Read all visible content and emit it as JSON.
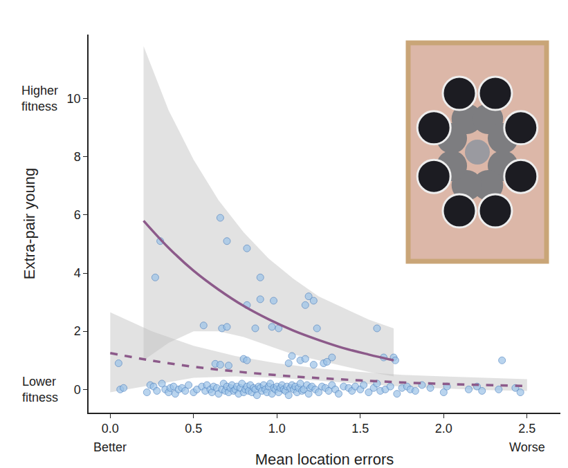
{
  "chart_data": {
    "type": "scatter",
    "xlabel": "Mean location errors",
    "ylabel": "Extra-pair young",
    "y_end_labels": {
      "low": "Lower fitness",
      "high": "Higher fitness"
    },
    "x_end_labels": {
      "low": "Better",
      "high": "Worse"
    },
    "xlim": [
      -0.13,
      2.7
    ],
    "ylim": [
      -0.8,
      12.2
    ],
    "xticks": [
      {
        "value": 0,
        "label": "0.0"
      },
      0.5,
      {
        "value": 1,
        "label": "1.0"
      },
      1.5,
      {
        "value": 2,
        "label": "2.0"
      },
      2.5
    ],
    "yticks": [
      0,
      2,
      4,
      6,
      8,
      10
    ],
    "grid": false,
    "series": [
      {
        "type": "scatter",
        "marker": "circle",
        "color": "#9cc3e8",
        "x": [
          0.3,
          0.27,
          0.66,
          0.7,
          0.82,
          0.9,
          0.9,
          0.98,
          0.82,
          0.56,
          0.67,
          0.7,
          0.87,
          0.97,
          1.01,
          1.19,
          1.22,
          1.17,
          1.24,
          1.6,
          0.63,
          0.66,
          0.71,
          0.8,
          0.82,
          1.07,
          1.09,
          1.14,
          1.17,
          1.22,
          1.28,
          1.3,
          1.33,
          1.64,
          1.7,
          1.71,
          2.35,
          0.05,
          0.06,
          0.08,
          0.22,
          0.24,
          0.26,
          0.28,
          0.31,
          0.33,
          0.35,
          0.36,
          0.38,
          0.39,
          0.41,
          0.43,
          0.45,
          0.47,
          0.5,
          0.52,
          0.55,
          0.57,
          0.58,
          0.6,
          0.61,
          0.62,
          0.64,
          0.65,
          0.67,
          0.68,
          0.69,
          0.7,
          0.71,
          0.72,
          0.73,
          0.74,
          0.75,
          0.76,
          0.77,
          0.78,
          0.79,
          0.8,
          0.81,
          0.82,
          0.83,
          0.84,
          0.85,
          0.86,
          0.87,
          0.88,
          0.89,
          0.9,
          0.91,
          0.92,
          0.93,
          0.94,
          0.95,
          0.96,
          0.97,
          0.98,
          0.99,
          1.0,
          1.01,
          1.02,
          1.03,
          1.04,
          1.05,
          1.06,
          1.07,
          1.08,
          1.09,
          1.1,
          1.11,
          1.12,
          1.13,
          1.14,
          1.15,
          1.16,
          1.18,
          1.19,
          1.2,
          1.21,
          1.23,
          1.25,
          1.27,
          1.29,
          1.31,
          1.33,
          1.35,
          1.37,
          1.4,
          1.43,
          1.45,
          1.47,
          1.5,
          1.52,
          1.55,
          1.58,
          1.6,
          1.62,
          1.65,
          1.68,
          1.72,
          1.75,
          1.78,
          1.8,
          1.83,
          1.87,
          1.92,
          2.0,
          2.02,
          2.15,
          2.2,
          2.23,
          2.33,
          2.43,
          2.46
        ],
        "values": [
          5.1,
          3.85,
          5.9,
          5.1,
          4.85,
          3.85,
          3.1,
          3.05,
          2.9,
          2.2,
          2.1,
          2.15,
          2.1,
          2.15,
          2.1,
          3.2,
          3.05,
          2.9,
          2.1,
          2.1,
          0.88,
          0.85,
          0.82,
          1.05,
          1.0,
          0.9,
          1.15,
          1.0,
          1.05,
          0.85,
          0.9,
          0.95,
          1.1,
          1.1,
          1.1,
          1.0,
          1.0,
          0.9,
          0.0,
          0.05,
          -0.1,
          0.15,
          0.1,
          -0.05,
          0.2,
          0.0,
          -0.1,
          0.05,
          0.1,
          -0.15,
          0.0,
          0.05,
          -0.05,
          0.15,
          -0.1,
          0.0,
          0.1,
          -0.05,
          0.15,
          0.0,
          -0.1,
          0.1,
          0.05,
          -0.15,
          0.0,
          0.2,
          -0.05,
          0.1,
          -0.1,
          0.05,
          0.15,
          -0.05,
          0.0,
          0.1,
          -0.15,
          0.05,
          0.2,
          -0.1,
          0.0,
          0.1,
          -0.05,
          0.15,
          -0.1,
          0.05,
          0.0,
          -0.2,
          0.1,
          0.05,
          -0.05,
          0.15,
          0.0,
          -0.1,
          0.1,
          0.2,
          -0.15,
          0.05,
          0.0,
          0.1,
          -0.1,
          0.05,
          0.15,
          0.0,
          -0.05,
          0.1,
          -0.2,
          0.05,
          0.15,
          0.0,
          0.1,
          -0.1,
          0.05,
          0.2,
          -0.05,
          0.0,
          0.15,
          -0.15,
          0.05,
          0.1,
          0.0,
          -0.1,
          0.1,
          0.05,
          -0.05,
          0.15,
          0.0,
          -0.15,
          0.1,
          0.05,
          -0.05,
          0.1,
          0.0,
          0.15,
          -0.1,
          0.05,
          0.2,
          -0.05,
          0.0,
          0.1,
          -0.15,
          0.05,
          0.1,
          0.0,
          -0.05,
          0.15,
          0.05,
          -0.1,
          0.1,
          0.0,
          0.1,
          -0.05,
          0.0,
          0.05,
          -0.1
        ]
      },
      {
        "type": "line",
        "line_style": "solid",
        "color": "#8c5a8a",
        "x": [
          0.2,
          0.35,
          0.5,
          0.65,
          0.8,
          0.95,
          1.1,
          1.25,
          1.4,
          1.55,
          1.7
        ],
        "values": [
          5.8,
          4.87,
          4.08,
          3.43,
          2.87,
          2.41,
          2.02,
          1.7,
          1.42,
          1.2,
          1.0
        ],
        "lower": [
          1.0,
          1.6,
          2.0,
          2.0,
          1.8,
          1.5,
          1.2,
          1.0,
          0.8,
          0.6,
          0.45
        ],
        "upper": [
          11.8,
          9.6,
          7.9,
          6.5,
          5.4,
          4.5,
          3.8,
          3.2,
          2.8,
          2.4,
          2.1
        ]
      },
      {
        "type": "line",
        "line_style": "dash",
        "color": "#8c5a8a",
        "x": [
          0,
          0.25,
          0.5,
          0.75,
          1.0,
          1.25,
          1.5,
          1.75,
          2.0,
          2.25,
          2.5
        ],
        "values": [
          1.25,
          0.99,
          0.78,
          0.62,
          0.49,
          0.39,
          0.31,
          0.24,
          0.19,
          0.15,
          0.12
        ],
        "lower": [
          -0.1,
          0.15,
          0.4,
          0.45,
          0.4,
          0.3,
          0.2,
          0.1,
          0.03,
          -0.02,
          -0.05
        ],
        "upper": [
          2.65,
          2.0,
          1.5,
          1.15,
          0.9,
          0.72,
          0.6,
          0.5,
          0.45,
          0.4,
          0.35
        ]
      }
    ]
  }
}
